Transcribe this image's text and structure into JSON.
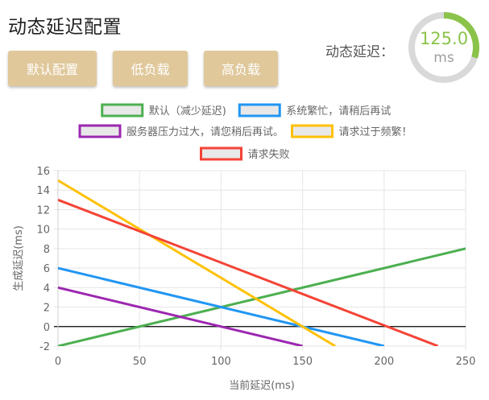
{
  "page": {
    "title": "动态延迟配置"
  },
  "presets": {
    "default_label": "默认配置",
    "low_label": "低负载",
    "high_label": "高负载"
  },
  "delay_gauge": {
    "label": "动态延迟：",
    "value": "125.0",
    "unit": "ms",
    "accent_color": "#8bc34a",
    "track_color": "#d9d9d9",
    "fraction": 0.3
  },
  "chart_data": {
    "type": "line",
    "title": "",
    "xlabel": "当前延迟(ms)",
    "ylabel": "生成延迟(ms)",
    "xlim": [
      0,
      250
    ],
    "ylim": [
      -2,
      16
    ],
    "x_ticks": [
      0,
      50,
      100,
      150,
      200,
      250
    ],
    "y_ticks": [
      -2,
      0,
      2,
      4,
      6,
      8,
      10,
      12,
      14,
      16
    ],
    "grid": true,
    "legend_position": "top",
    "series": [
      {
        "name": "默认（减少延迟)",
        "color": "#4caf50",
        "x": [
          0,
          250
        ],
        "y": [
          -2,
          8
        ]
      },
      {
        "name": "系统繁忙，请稍后再试",
        "color": "#2196f3",
        "x": [
          0,
          200
        ],
        "y": [
          6,
          -2
        ]
      },
      {
        "name": "服务器压力过大，请您稍后再试。",
        "color": "#9c27b0",
        "x": [
          0,
          150
        ],
        "y": [
          4,
          -2
        ]
      },
      {
        "name": "请求过于频繁！",
        "color": "#ffc107",
        "x": [
          0,
          170
        ],
        "y": [
          15,
          -2
        ]
      },
      {
        "name": "请求失败",
        "color": "#f44336",
        "x": [
          0,
          233
        ],
        "y": [
          13,
          -2
        ]
      }
    ]
  }
}
